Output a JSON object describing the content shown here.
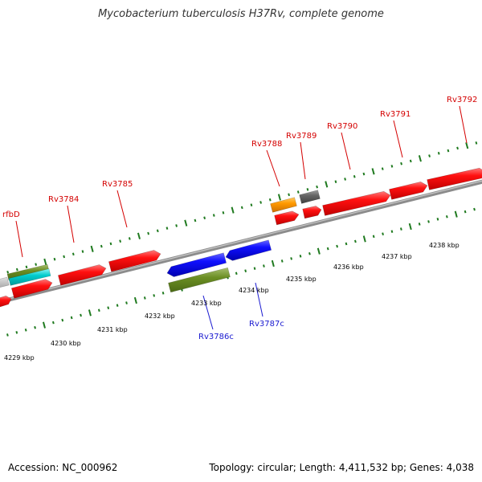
{
  "title": "Mycobacterium tuberculosis H37Rv, complete genome",
  "footer": {
    "accession": "Accession: NC_000962",
    "info": "Topology: circular; Length: 4,411,532 bp; Genes: 4,038"
  },
  "colors": {
    "backbone": "#8c8c8c",
    "tick": "#1f7a1f",
    "gene_forward_red": "#ff0000",
    "gene_reverse_blue": "#0000ee",
    "gene_olive": "#6b8e23",
    "gene_orange": "#ff9900",
    "gene_gray": "#666666",
    "gene_cyan": "#00cccc",
    "label_forward": "#d40000",
    "label_reverse": "#1a1ad0"
  },
  "scale_labels": [
    "4229 kbp",
    "4230 kbp",
    "4231 kbp",
    "4232 kbp",
    "4233 kbp",
    "4234 kbp",
    "4235 kbp",
    "4236 kbp",
    "4237 kbp",
    "4238 kbp"
  ],
  "gene_labels_forward": [
    "rfbD",
    "Rv3784",
    "Rv3785",
    "Rv3788",
    "Rv3789",
    "Rv3790",
    "Rv3791",
    "Rv3792"
  ],
  "gene_labels_reverse": [
    "Rv3786c",
    "Rv3787c"
  ]
}
